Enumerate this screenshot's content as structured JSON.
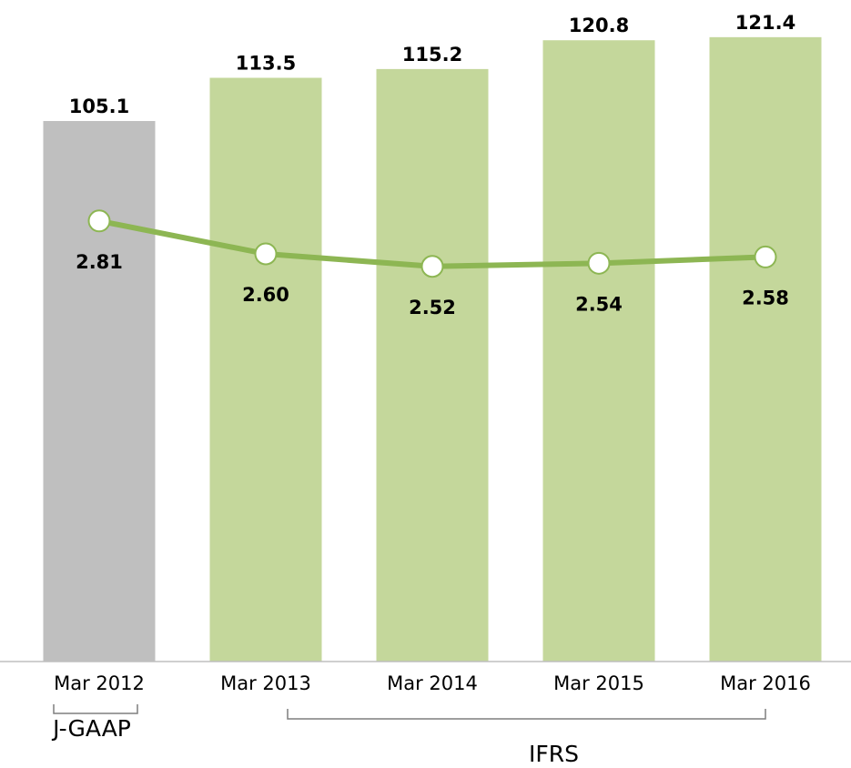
{
  "chart_data": {
    "type": "bar",
    "categories": [
      "Mar 2012",
      "Mar 2013",
      "Mar 2014",
      "Mar 2015",
      "Mar 2016"
    ],
    "series": [
      {
        "type": "bar",
        "values": [
          105.1,
          113.5,
          115.2,
          120.8,
          121.4
        ],
        "colors": [
          "#bfbfbf",
          "#c4d79b",
          "#c4d79b",
          "#c4d79b",
          "#c4d79b"
        ]
      },
      {
        "type": "line",
        "axis": "y2",
        "color": "#8db653",
        "values": [
          2.81,
          2.6,
          2.52,
          2.54,
          2.58
        ],
        "value_labels": [
          "2.81",
          "2.60",
          "2.52",
          "2.54",
          "2.58"
        ]
      }
    ],
    "ylim": [
      0,
      125
    ],
    "y2lim": [
      0,
      4.1
    ],
    "groups": [
      {
        "label": "J-GAAP",
        "from": 0,
        "to": 0
      },
      {
        "label": "IFRS",
        "from": 1,
        "to": 4
      }
    ]
  }
}
